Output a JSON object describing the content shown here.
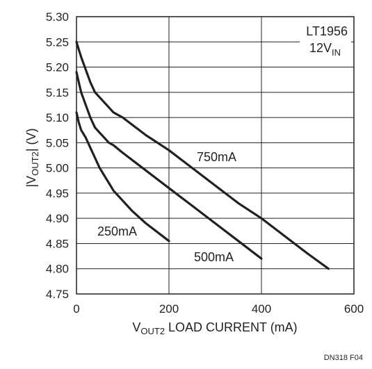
{
  "chart_data": {
    "type": "line",
    "xlabel": {
      "prefix": "V",
      "sub": "OUT2",
      "rest": " LOAD CURRENT (mA)"
    },
    "ylabel": {
      "prefix": "|V",
      "sub": "OUT2",
      "rest": "| (V)"
    },
    "xlim": [
      0,
      600
    ],
    "ylim": [
      4.75,
      5.3
    ],
    "xticks": [
      "0",
      "200",
      "400",
      "600"
    ],
    "xtick_values": [
      0,
      200,
      400,
      600
    ],
    "yticks": [
      "4.75",
      "4.80",
      "4.85",
      "4.90",
      "4.95",
      "5.00",
      "5.05",
      "5.10",
      "5.15",
      "5.20",
      "5.25",
      "5.30"
    ],
    "ytick_values": [
      4.75,
      4.8,
      4.85,
      4.9,
      4.95,
      5.0,
      5.05,
      5.1,
      5.15,
      5.2,
      5.25,
      5.3
    ],
    "grid": true,
    "annotation": {
      "line1": "LT1956",
      "line2_main": "12V",
      "line2_sub": "IN"
    },
    "figure_id": "DN318 F04",
    "series": [
      {
        "name": "250mA",
        "x": [
          0,
          5,
          10,
          20,
          30,
          40,
          50,
          60,
          70,
          80,
          100,
          120,
          150,
          200
        ],
        "y": [
          5.11,
          5.09,
          5.075,
          5.06,
          5.04,
          5.02,
          5.0,
          4.985,
          4.97,
          4.955,
          4.935,
          4.915,
          4.89,
          4.855
        ]
      },
      {
        "name": "500mA",
        "x": [
          0,
          5,
          10,
          20,
          30,
          40,
          50,
          60,
          70,
          80,
          100,
          150,
          200,
          250,
          300,
          350,
          400
        ],
        "y": [
          5.19,
          5.17,
          5.15,
          5.125,
          5.1,
          5.08,
          5.07,
          5.06,
          5.05,
          5.045,
          5.03,
          4.995,
          4.96,
          4.925,
          4.89,
          4.855,
          4.82
        ]
      },
      {
        "name": "750mA",
        "x": [
          0,
          5,
          10,
          20,
          30,
          40,
          50,
          60,
          70,
          80,
          100,
          150,
          200,
          250,
          300,
          350,
          400,
          450,
          500,
          545
        ],
        "y": [
          5.25,
          5.235,
          5.22,
          5.195,
          5.17,
          5.15,
          5.14,
          5.13,
          5.12,
          5.11,
          5.1,
          5.065,
          5.035,
          5.0,
          4.965,
          4.93,
          4.9,
          4.865,
          4.83,
          4.8
        ]
      }
    ]
  }
}
